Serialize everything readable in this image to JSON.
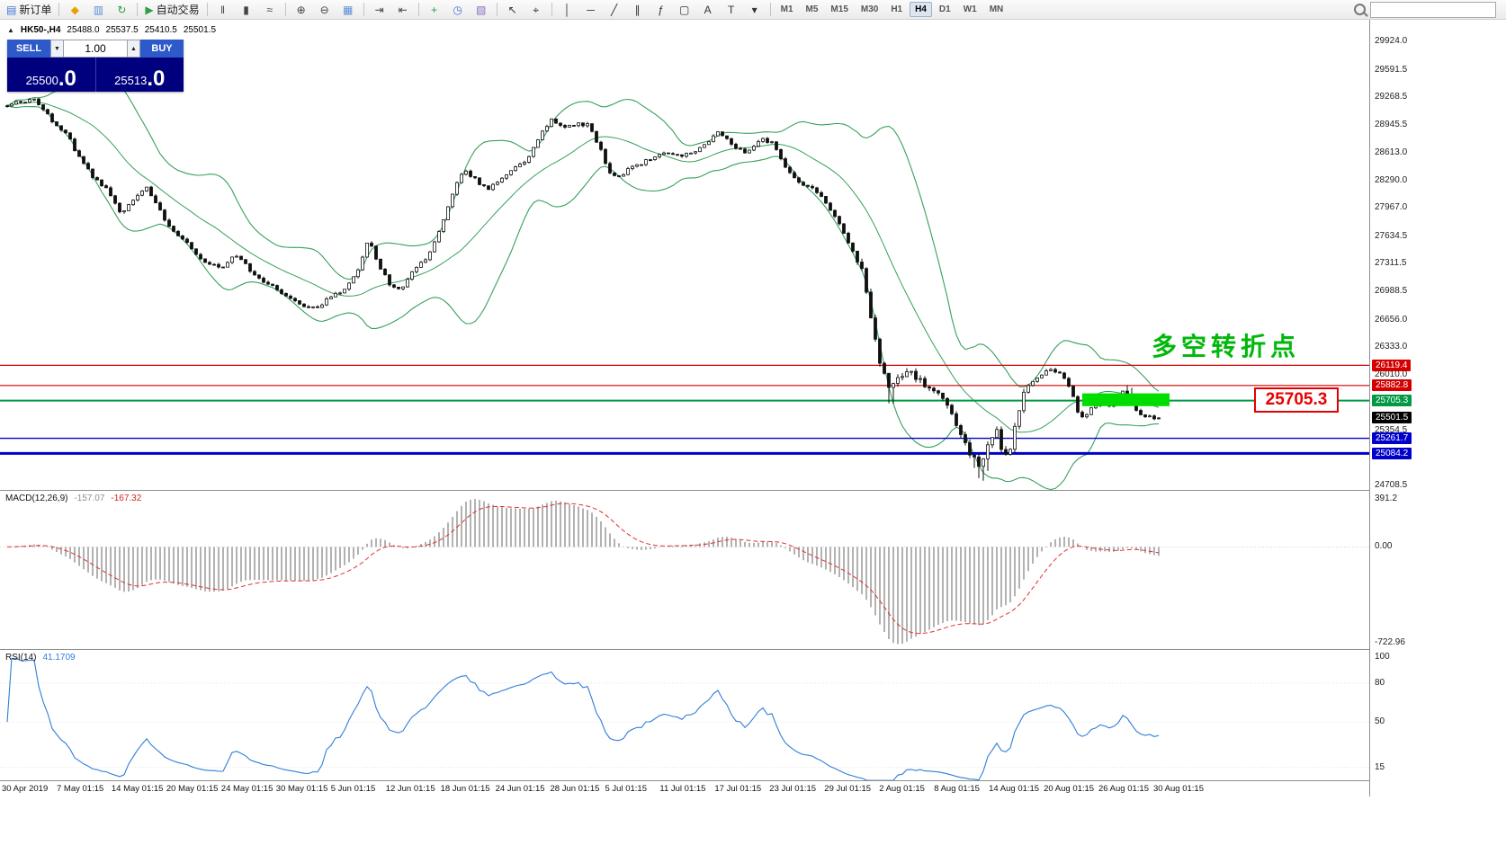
{
  "toolbar": {
    "buttons": [
      {
        "name": "new-order",
        "glyph": "▤",
        "glyph_color": "#3f72d8",
        "label": "新订单"
      },
      {
        "name": "sep"
      },
      {
        "name": "metaeditor",
        "glyph": "◆",
        "glyph_color": "#e8a200"
      },
      {
        "name": "profile",
        "glyph": "▥",
        "glyph_color": "#5b8dd6"
      },
      {
        "name": "refresh",
        "glyph": "↻",
        "glyph_color": "#2f9e44"
      },
      {
        "name": "sep"
      },
      {
        "name": "autotrading",
        "glyph": "▶",
        "glyph_color": "#2f9e44",
        "label": "自动交易"
      },
      {
        "name": "sep"
      },
      {
        "name": "chart-bars",
        "glyph": "‖",
        "glyph_color": "#444444"
      },
      {
        "name": "chart-candles",
        "glyph": "▮",
        "glyph_color": "#444444"
      },
      {
        "name": "chart-line",
        "glyph": "≈",
        "glyph_color": "#444444"
      },
      {
        "name": "sep"
      },
      {
        "name": "zoom-in",
        "glyph": "⊕",
        "glyph_color": "#444444"
      },
      {
        "name": "zoom-out",
        "glyph": "⊖",
        "glyph_color": "#444444"
      },
      {
        "name": "tile-windows",
        "glyph": "▦",
        "glyph_color": "#5b8dd6"
      },
      {
        "name": "sep"
      },
      {
        "name": "auto-scroll",
        "glyph": "⇥",
        "glyph_color": "#444444"
      },
      {
        "name": "chart-shift",
        "glyph": "⇤",
        "glyph_color": "#444444"
      },
      {
        "name": "sep"
      },
      {
        "name": "indicators",
        "glyph": "+",
        "glyph_color": "#2f9e44"
      },
      {
        "name": "periods",
        "glyph": "◷",
        "glyph_color": "#3f72d8"
      },
      {
        "name": "templates",
        "glyph": "▧",
        "glyph_color": "#8a6fc0"
      },
      {
        "name": "sep"
      },
      {
        "name": "cursor",
        "glyph": "↖",
        "glyph_color": "#333333"
      },
      {
        "name": "crosshair",
        "glyph": "⌖",
        "glyph_color": "#333333"
      },
      {
        "name": "sep"
      },
      {
        "name": "vertical-line",
        "glyph": "│",
        "glyph_color": "#333333"
      },
      {
        "name": "horizontal-line",
        "glyph": "─",
        "glyph_color": "#333333"
      },
      {
        "name": "trendline",
        "glyph": "╱",
        "glyph_color": "#333333"
      },
      {
        "name": "channel",
        "glyph": "∥",
        "glyph_color": "#333333"
      },
      {
        "name": "fibonacci",
        "glyph": "ƒ",
        "glyph_color": "#333333"
      },
      {
        "name": "shapes",
        "glyph": "▢",
        "glyph_color": "#333333"
      },
      {
        "name": "text",
        "glyph": "A",
        "glyph_color": "#333333"
      },
      {
        "name": "text-label",
        "glyph": "T",
        "glyph_color": "#333333"
      },
      {
        "name": "arrows",
        "glyph": "▾",
        "glyph_color": "#333333"
      },
      {
        "name": "sep"
      }
    ],
    "timeframes": [
      "M1",
      "M5",
      "M15",
      "M30",
      "H1",
      "H4",
      "D1",
      "W1",
      "MN"
    ],
    "active_timeframe": "H4",
    "search_placeholder": ""
  },
  "chart": {
    "panel_toggle_glyph": "▲",
    "symbol_info": {
      "symbol": "HK50-,H4",
      "open": "25488.0",
      "high": "25537.5",
      "low": "25410.5",
      "close": "25501.5"
    },
    "trade_panel": {
      "sell_label": "SELL",
      "buy_label": "BUY",
      "volume": "1.00",
      "spin_down": "▼",
      "spin_up": "▲",
      "sell_price_main": "25500",
      "sell_price_big": ".0",
      "buy_price_main": "25513",
      "buy_price_big": ".0",
      "button_color": "#2e59c9",
      "panel_color": "#00007e"
    },
    "annotation": {
      "text": "多空转折点",
      "color": "#00b80a"
    },
    "price_callout": {
      "text": "25705.3",
      "color": "#e60000"
    },
    "levels": [
      {
        "price": 26119.4,
        "label": "26119.4",
        "color": "#d40000",
        "thickness": 1.2
      },
      {
        "price": 25882.8,
        "label": "25882.8",
        "color": "#d40000",
        "thickness": 1.2
      },
      {
        "price": 25705.3,
        "label": "25705.3",
        "color": "#009944",
        "thickness": 2
      },
      {
        "price": 25261.7,
        "label": "25261.7",
        "color": "#0000cc",
        "thickness": 1.4
      },
      {
        "price": 25084.2,
        "label": "25084.2",
        "color": "#0000cc",
        "thickness": 3
      }
    ],
    "current_price_tag": {
      "label": "25501.5",
      "price": 25501.5,
      "color": "#000000"
    },
    "axis_labels": [
      "29924.0",
      "29591.5",
      "29268.5",
      "28945.5",
      "28613.0",
      "28290.0",
      "27967.0",
      "27634.5",
      "27311.5",
      "26988.5",
      "26656.0",
      "26333.0",
      "26010.0",
      "25354.5",
      "24708.5"
    ],
    "highlight_zone": {
      "x": [
        1203,
        1300
      ],
      "price": [
        25640,
        25790
      ],
      "color": "#00dd00"
    }
  },
  "macd": {
    "label": "MACD(12,26,9)",
    "value_main": "-157.07",
    "value_signal": "-167.32",
    "axis": [
      "391.2",
      "0.00",
      "-722.96"
    ]
  },
  "rsi": {
    "label": "RSI(14)",
    "value": "41.1709",
    "axis": [
      "100",
      "80",
      "50",
      "15"
    ]
  },
  "time_axis": {
    "labels": [
      "30 Apr 2019",
      "7 May 01:15",
      "14 May 01:15",
      "20 May 01:15",
      "24 May 01:15",
      "30 May 01:15",
      "5 Jun 01:15",
      "12 Jun 01:15",
      "18 Jun 01:15",
      "24 Jun 01:15",
      "28 Jun 01:15",
      "5 Jul 01:15",
      "11 Jul 01:15",
      "17 Jul 01:15",
      "23 Jul 01:15",
      "29 Jul 01:15",
      "2 Aug 01:15",
      "8 Aug 01:15",
      "14 Aug 01:15",
      "20 Aug 01:15",
      "26 Aug 01:15",
      "30 Aug 01:15"
    ]
  },
  "chart_data": {
    "type": "candlestick",
    "symbol": "HK50-",
    "timeframe": "H4",
    "title": "HK50-,H4",
    "ohlc_current": {
      "open": 25488.0,
      "high": 25537.5,
      "low": 25410.5,
      "close": 25501.5
    },
    "bid": 25500.0,
    "ask": 25513.0,
    "y_axis": {
      "min": 24708.5,
      "max": 29924.0
    },
    "price_path_anchors": [
      [
        6,
        29180
      ],
      [
        40,
        29240
      ],
      [
        60,
        28950
      ],
      [
        75,
        28820
      ],
      [
        90,
        28520
      ],
      [
        105,
        28310
      ],
      [
        120,
        28180
      ],
      [
        135,
        27900
      ],
      [
        150,
        28060
      ],
      [
        163,
        28230
      ],
      [
        175,
        27990
      ],
      [
        190,
        27720
      ],
      [
        205,
        27600
      ],
      [
        220,
        27380
      ],
      [
        235,
        27280
      ],
      [
        250,
        27290
      ],
      [
        263,
        27420
      ],
      [
        278,
        27240
      ],
      [
        295,
        27090
      ],
      [
        315,
        26960
      ],
      [
        335,
        26830
      ],
      [
        352,
        26800
      ],
      [
        368,
        26930
      ],
      [
        385,
        27020
      ],
      [
        400,
        27300
      ],
      [
        410,
        27620
      ],
      [
        420,
        27330
      ],
      [
        432,
        27080
      ],
      [
        445,
        27010
      ],
      [
        460,
        27230
      ],
      [
        475,
        27380
      ],
      [
        490,
        27760
      ],
      [
        505,
        28180
      ],
      [
        515,
        28400
      ],
      [
        528,
        28310
      ],
      [
        542,
        28170
      ],
      [
        556,
        28300
      ],
      [
        570,
        28430
      ],
      [
        585,
        28520
      ],
      [
        600,
        28800
      ],
      [
        612,
        29010
      ],
      [
        625,
        28920
      ],
      [
        640,
        28960
      ],
      [
        655,
        28940
      ],
      [
        668,
        28640
      ],
      [
        680,
        28320
      ],
      [
        695,
        28390
      ],
      [
        710,
        28480
      ],
      [
        725,
        28550
      ],
      [
        740,
        28610
      ],
      [
        755,
        28570
      ],
      [
        770,
        28610
      ],
      [
        785,
        28720
      ],
      [
        800,
        28870
      ],
      [
        815,
        28700
      ],
      [
        830,
        28620
      ],
      [
        845,
        28790
      ],
      [
        858,
        28730
      ],
      [
        872,
        28480
      ],
      [
        888,
        28270
      ],
      [
        902,
        28210
      ],
      [
        918,
        28030
      ],
      [
        932,
        27790
      ],
      [
        946,
        27510
      ],
      [
        958,
        27280
      ],
      [
        968,
        26700
      ],
      [
        978,
        26180
      ],
      [
        988,
        25880
      ],
      [
        998,
        25960
      ],
      [
        1008,
        26060
      ],
      [
        1020,
        25970
      ],
      [
        1032,
        25870
      ],
      [
        1045,
        25780
      ],
      [
        1058,
        25560
      ],
      [
        1070,
        25260
      ],
      [
        1080,
        25040
      ],
      [
        1090,
        24940
      ],
      [
        1099,
        25200
      ],
      [
        1107,
        25430
      ],
      [
        1114,
        25120
      ],
      [
        1121,
        25030
      ],
      [
        1130,
        25480
      ],
      [
        1140,
        25830
      ],
      [
        1151,
        25970
      ],
      [
        1161,
        26030
      ],
      [
        1171,
        26070
      ],
      [
        1181,
        26010
      ],
      [
        1191,
        25830
      ],
      [
        1201,
        25480
      ],
      [
        1211,
        25580
      ],
      [
        1221,
        25690
      ],
      [
        1231,
        25640
      ],
      [
        1241,
        25690
      ],
      [
        1251,
        25840
      ],
      [
        1261,
        25620
      ],
      [
        1271,
        25520
      ],
      [
        1283,
        25500
      ]
    ],
    "wick_extensions": [
      {
        "range": [
          986,
          996
        ],
        "amount": 200,
        "side": "low"
      },
      {
        "range": [
          1083,
          1098
        ],
        "amount": 160,
        "side": "low"
      },
      {
        "range": [
          1252,
          1258
        ],
        "amount": 70,
        "side": "high"
      }
    ],
    "overlays": {
      "bollinger_bands": {
        "period": 20,
        "deviation": 2,
        "color": "#37a05c"
      }
    },
    "horizontal_levels": [
      26119.4,
      25882.8,
      25705.3,
      25261.7,
      25084.2
    ],
    "indicators": [
      {
        "type": "MACD",
        "params": [
          12,
          26,
          9
        ],
        "current_main": -157.07,
        "current_signal": -167.32,
        "scale": {
          "max": 391.2,
          "zero": 0.0,
          "min": -722.96
        }
      },
      {
        "type": "RSI",
        "params": [
          14
        ],
        "current": 41.1709,
        "scale_labels": [
          100,
          80,
          50,
          15
        ]
      }
    ],
    "annotations": [
      {
        "type": "text",
        "text": "多空转折点",
        "color": "#00b80a"
      },
      {
        "type": "price-box",
        "text": "25705.3",
        "color": "#e60000"
      },
      {
        "type": "highlight-rect",
        "color": "#00dd00",
        "price_range": [
          25640,
          25790
        ]
      }
    ]
  }
}
